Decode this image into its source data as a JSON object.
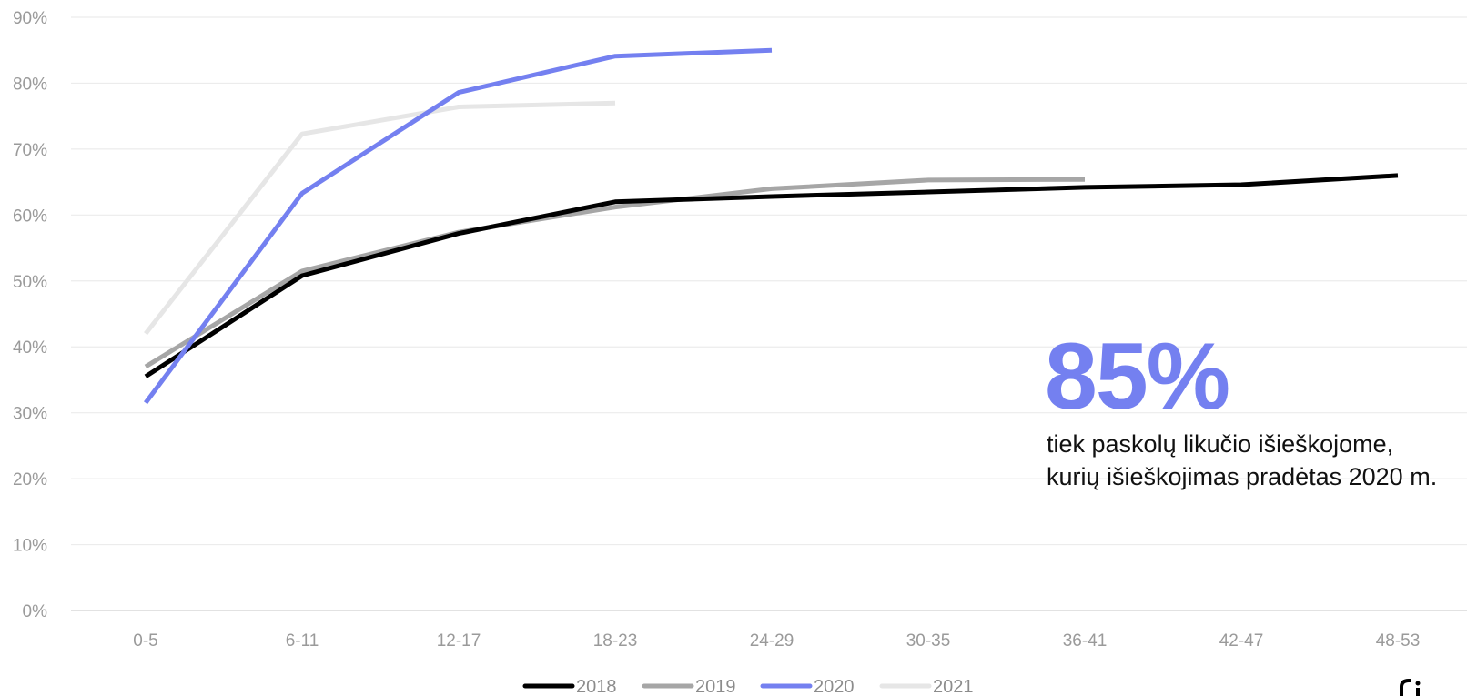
{
  "chart_data": {
    "type": "line",
    "categories": [
      "0-5",
      "6-11",
      "12-17",
      "18-23",
      "24-29",
      "30-35",
      "36-41",
      "42-47",
      "48-53"
    ],
    "y_ticks": [
      "0%",
      "10%",
      "20%",
      "30%",
      "40%",
      "50%",
      "60%",
      "70%",
      "80%",
      "90%"
    ],
    "ylim": [
      0,
      90
    ],
    "grid": true,
    "legend_position": "bottom",
    "series": [
      {
        "name": "2018",
        "color": "#000000",
        "values": [
          35.5,
          50.8,
          57.2,
          62.0,
          62.8,
          63.5,
          64.2,
          64.6,
          66.0
        ]
      },
      {
        "name": "2019",
        "color": "#a6a6a6",
        "values": [
          37.0,
          51.5,
          57.4,
          61.2,
          64.0,
          65.3,
          65.4,
          null,
          null
        ]
      },
      {
        "name": "2020",
        "color": "#7480f0",
        "values": [
          31.5,
          63.3,
          78.6,
          84.1,
          85.0,
          null,
          null,
          null,
          null
        ]
      },
      {
        "name": "2021",
        "color": "#e6e6e6",
        "values": [
          42.0,
          72.3,
          76.4,
          77.0,
          null,
          null,
          null,
          null,
          null
        ]
      }
    ]
  },
  "callout": {
    "value": "85%",
    "line1": "tiek paskolų likučio išieškojome,",
    "line2": "kurių išieškojimas pradėtas 2020 m."
  }
}
